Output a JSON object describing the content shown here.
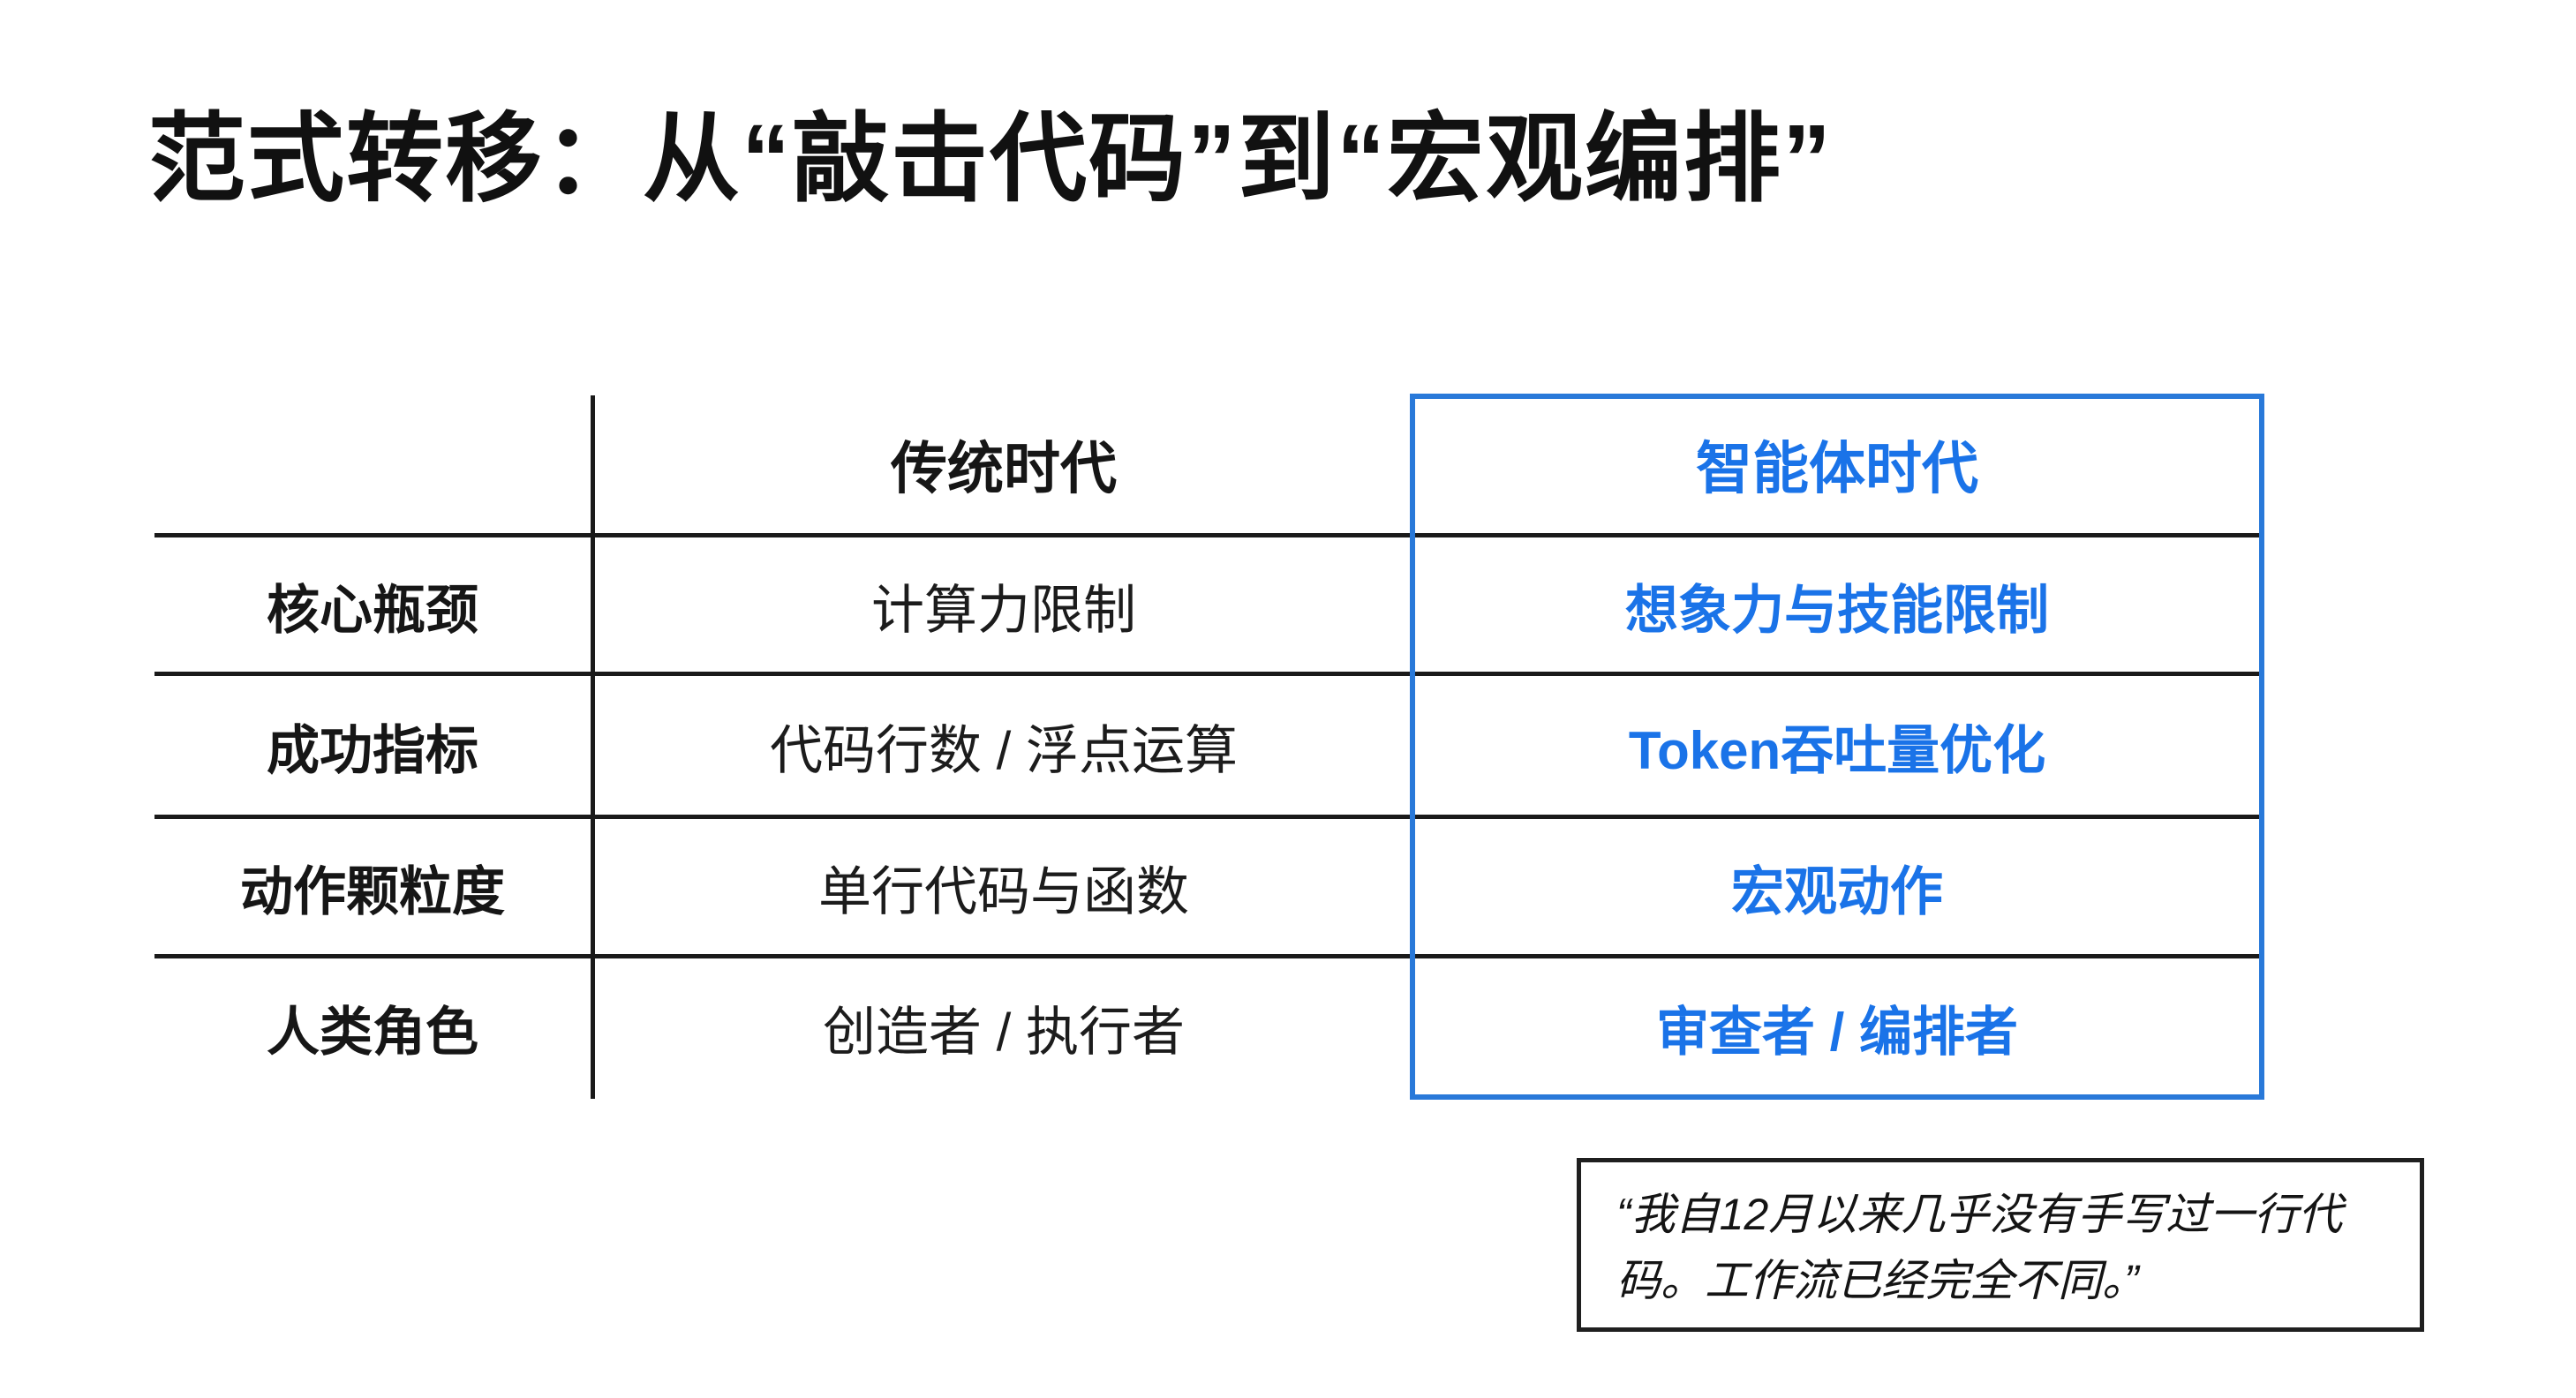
{
  "title": "范式转移：从“敲击代码”到“宏观编排”",
  "table": {
    "header": {
      "traditional": "传统时代",
      "agent": "智能体时代"
    },
    "rows": [
      {
        "label": "核心瓶颈",
        "traditional": "计算力限制",
        "agent": "想象力与技能限制"
      },
      {
        "label": "成功指标",
        "traditional": "代码行数 / 浮点运算",
        "agent": "Token吞吐量优化"
      },
      {
        "label": "动作颗粒度",
        "traditional": "单行代码与函数",
        "agent": "宏观动作"
      },
      {
        "label": "人类角色",
        "traditional": "创造者 / 执行者",
        "agent": "审查者 / 编排者"
      }
    ]
  },
  "quote": {
    "line1": "“我自12月以来几乎没有手写过一行代",
    "line2": "码。工作流已经完全不同。”"
  },
  "colors": {
    "accent_blue_text": "#1a73e8",
    "accent_blue_border": "#2979d9",
    "text_black": "#161616"
  }
}
